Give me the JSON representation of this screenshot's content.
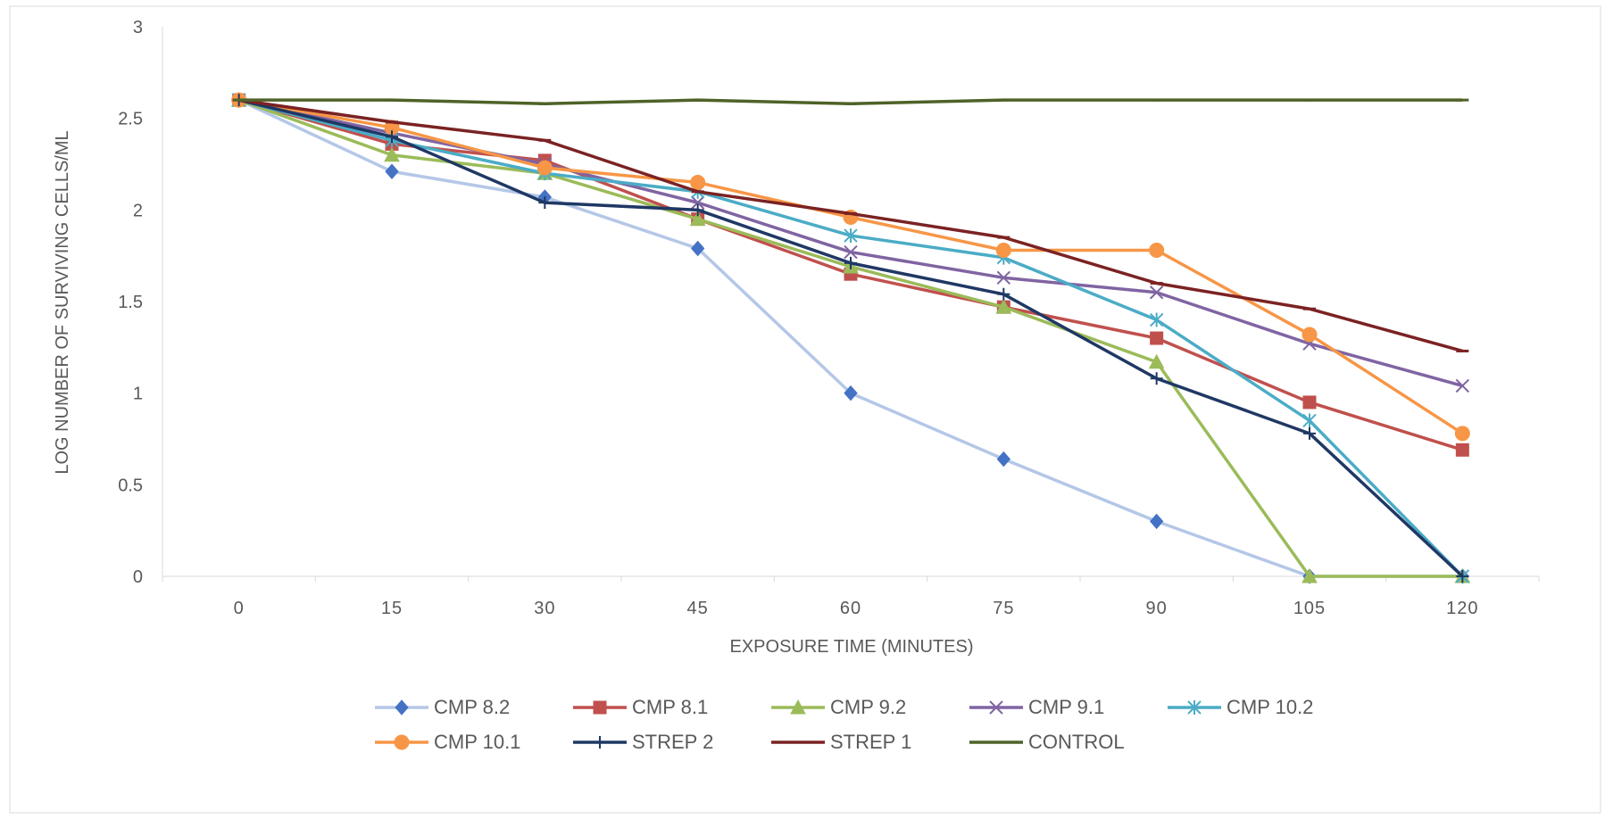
{
  "chart_data": {
    "type": "line",
    "title": "",
    "xlabel": "EXPOSURE TIME (MINUTES)",
    "ylabel": "LOG NUMBER OF SURVIVING CELLS/ML",
    "categories": [
      "0",
      "15",
      "30",
      "45",
      "60",
      "75",
      "90",
      "105",
      "120"
    ],
    "ylim": [
      0,
      3
    ],
    "yticks": [
      "0",
      "0.5",
      "1",
      "1.5",
      "2",
      "2.5",
      "3"
    ],
    "grid": false,
    "legend_position": "bottom",
    "series": [
      {
        "name": "CMP 8.2",
        "color": "#b4c7e7",
        "marker_color": "#4472c4",
        "marker": "diamond",
        "values": [
          2.6,
          2.21,
          2.07,
          1.79,
          1.0,
          0.64,
          0.3,
          0.0,
          0.0
        ]
      },
      {
        "name": "CMP 8.1",
        "color": "#c0504d",
        "marker_color": "#c0504d",
        "marker": "square",
        "values": [
          2.6,
          2.36,
          2.27,
          1.95,
          1.65,
          1.47,
          1.3,
          0.95,
          0.69
        ]
      },
      {
        "name": "CMP 9.2",
        "color": "#9bbb59",
        "marker_color": "#9bbb59",
        "marker": "triangle",
        "values": [
          2.6,
          2.3,
          2.2,
          1.95,
          1.69,
          1.47,
          1.17,
          0.0,
          0.0
        ]
      },
      {
        "name": "CMP 9.1",
        "color": "#8064a2",
        "marker_color": "#8064a2",
        "marker": "x",
        "values": [
          2.6,
          2.42,
          2.25,
          2.04,
          1.77,
          1.63,
          1.55,
          1.27,
          1.04
        ]
      },
      {
        "name": "CMP 10.2",
        "color": "#4bacc6",
        "marker_color": "#4bacc6",
        "marker": "star",
        "values": [
          2.6,
          2.38,
          2.2,
          2.1,
          1.86,
          1.74,
          1.4,
          0.85,
          0.0
        ]
      },
      {
        "name": "CMP 10.1",
        "color": "#f79646",
        "marker_color": "#f79646",
        "marker": "circle",
        "values": [
          2.6,
          2.45,
          2.23,
          2.15,
          1.96,
          1.78,
          1.78,
          1.32,
          0.78
        ]
      },
      {
        "name": "STREP 2",
        "color": "#1f3864",
        "marker_color": "#1f3864",
        "marker": "plus",
        "values": [
          2.6,
          2.4,
          2.04,
          2.0,
          1.71,
          1.54,
          1.08,
          0.78,
          0.0
        ]
      },
      {
        "name": "STREP 1",
        "color": "#7b2223",
        "marker_color": "#7b2223",
        "marker": "dash",
        "values": [
          2.6,
          2.48,
          2.38,
          2.1,
          1.98,
          1.85,
          1.6,
          1.46,
          1.23
        ]
      },
      {
        "name": "CONTROL",
        "color": "#4f6228",
        "marker_color": "#4f6228",
        "marker": "dash",
        "values": [
          2.6,
          2.6,
          2.58,
          2.6,
          2.58,
          2.6,
          2.6,
          2.6,
          2.6
        ]
      }
    ]
  }
}
